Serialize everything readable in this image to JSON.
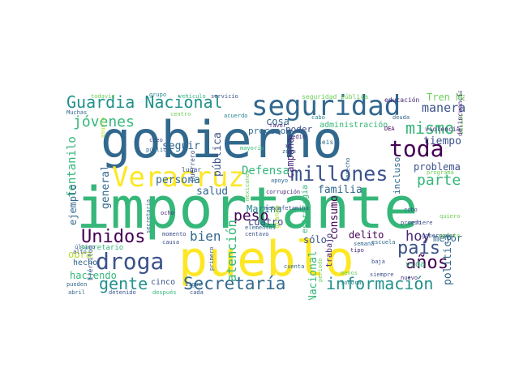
{
  "wordcloud": {
    "words": [
      {
        "text": "importante",
        "color": "#35b779",
        "rot": 0
      },
      {
        "text": "gobierno",
        "color": "#31688e",
        "rot": 0
      },
      {
        "text": "pueblo",
        "color": "#fde725",
        "rot": 0
      },
      {
        "text": "seguridad",
        "color": "#31688e",
        "rot": 0
      },
      {
        "text": "Veracruz",
        "color": "#fde725",
        "rot": 0
      },
      {
        "text": "Guardia Nacional",
        "color": "#21918c",
        "rot": 0
      },
      {
        "text": "millones",
        "color": "#3b528b",
        "rot": 0
      },
      {
        "text": "toda",
        "color": "#440154",
        "rot": 0
      },
      {
        "text": "droga",
        "color": "#3b528b",
        "rot": 0
      },
      {
        "text": "Secretaría",
        "color": "#31688e",
        "rot": 0
      },
      {
        "text": "información",
        "color": "#21918c",
        "rot": 0
      },
      {
        "text": "Unidos",
        "color": "#440154",
        "rot": 0
      },
      {
        "text": "jóvenes",
        "color": "#35b779",
        "rot": 0
      },
      {
        "text": "mismo",
        "color": "#35b779",
        "rot": 0
      },
      {
        "text": "país",
        "color": "#3b528b",
        "rot": 0
      },
      {
        "text": "años",
        "color": "#440154",
        "rot": 0
      },
      {
        "text": "gente",
        "color": "#21918c",
        "rot": 0
      },
      {
        "text": "parte",
        "color": "#35b779",
        "rot": 0
      },
      {
        "text": "hoy",
        "color": "#482878",
        "rot": 0
      },
      {
        "text": "peso",
        "color": "#440154",
        "rot": 0
      },
      {
        "text": "bien",
        "color": "#31688e",
        "rot": 0
      },
      {
        "text": "manera",
        "color": "#3b528b",
        "rot": 0
      },
      {
        "text": "tiempo",
        "color": "#3b528b",
        "rot": 0
      },
      {
        "text": "problema",
        "color": "#3b528b",
        "rot": 0
      },
      {
        "text": "Tren Maya",
        "color": "#6ece58",
        "rot": 0
      },
      {
        "text": "familia",
        "color": "#31688e",
        "rot": 0
      },
      {
        "text": "Defensa",
        "color": "#35b779",
        "rot": 0
      },
      {
        "text": "salud",
        "color": "#31688e",
        "rot": 0
      },
      {
        "text": "seguir",
        "color": "#31688e",
        "rot": 0
      },
      {
        "text": "persona",
        "color": "#31688e",
        "rot": 0
      },
      {
        "text": "Marina",
        "color": "#26828e",
        "rot": 0
      },
      {
        "text": "cuatro",
        "color": "#3e4989",
        "rot": 0
      },
      {
        "text": "delito",
        "color": "#440154",
        "rot": 0
      },
      {
        "text": "mejor",
        "color": "#31688e",
        "rot": 0
      },
      {
        "text": "sólo",
        "color": "#3b528b",
        "rot": 0
      },
      {
        "text": "haciendo",
        "color": "#35b779",
        "rot": 0
      },
      {
        "text": "obra",
        "color": "#b5de2b",
        "rot": 0
      },
      {
        "text": "hecho",
        "color": "#31688e",
        "rot": 0
      },
      {
        "text": "cosa",
        "color": "#31688e",
        "rot": 0
      },
      {
        "text": "poder",
        "color": "#3b528b",
        "rot": 0
      },
      {
        "text": "cinco",
        "color": "#3b528b",
        "rot": 0
      },
      {
        "text": "vida",
        "color": "#35b779",
        "rot": 0
      },
      {
        "text": "administración",
        "color": "#35b779",
        "rot": 0
      },
      {
        "text": "seguridad pública",
        "color": "#6ece58",
        "rot": 0
      },
      {
        "text": "educación",
        "color": "#482878",
        "rot": 0
      },
      {
        "text": "violencia",
        "color": "#482878",
        "rot": 0
      },
      {
        "text": "proceso",
        "color": "#31688e",
        "rot": 0
      },
      {
        "text": "secretario",
        "color": "#35b779",
        "rot": 0
      },
      {
        "text": "todavía",
        "color": "#6ece58",
        "rot": 0
      },
      {
        "text": "grupo",
        "color": "#26828e",
        "rot": 0
      },
      {
        "text": "vehículo",
        "color": "#35b779",
        "rot": 0
      },
      {
        "text": "servicio",
        "color": "#3b528b",
        "rot": 0
      },
      {
        "text": "Muchas",
        "color": "#31688e",
        "rot": 0
      },
      {
        "text": "cabo",
        "color": "#26828e",
        "rot": 0
      },
      {
        "text": "centro",
        "color": "#6ece58",
        "rot": 0
      },
      {
        "text": "acuerdo",
        "color": "#26828e",
        "rot": 0
      },
      {
        "text": "favor",
        "color": "#482878",
        "rot": 0
      },
      {
        "text": "DEA",
        "color": "#440154",
        "rot": 0
      },
      {
        "text": "deuda",
        "color": "#31688e",
        "rot": 0
      },
      {
        "text": "creo",
        "color": "#3b528b",
        "rot": 0
      },
      {
        "text": "público",
        "color": "#31688e",
        "rot": 0
      },
      {
        "text": "lugar",
        "color": "#3b528b",
        "rot": 0
      },
      {
        "text": "mayoría",
        "color": "#35b779",
        "rot": 0
      },
      {
        "text": "seis",
        "color": "#31688e",
        "rot": 0
      },
      {
        "text": "zona",
        "color": "#31688e",
        "rot": 0
      },
      {
        "text": "apoyo",
        "color": "#31688e",
        "rot": 0
      },
      {
        "text": "programa",
        "color": "#6ece58",
        "rot": 0
      },
      {
        "text": "ocho",
        "color": "#482878",
        "rot": 0
      },
      {
        "text": "momento",
        "color": "#3b528b",
        "rot": 0
      },
      {
        "text": "causa",
        "color": "#3b528b",
        "rot": 0
      },
      {
        "text": "centavo",
        "color": "#3b528b",
        "rot": 0
      },
      {
        "text": "elementos",
        "color": "#31688e",
        "rot": 0
      },
      {
        "text": "corrupción",
        "color": "#482878",
        "rot": 0
      },
      {
        "text": "metanfetamina",
        "color": "#3b528b",
        "rot": 0
      },
      {
        "text": "medio",
        "color": "#482878",
        "rot": 0
      },
      {
        "text": "menos",
        "color": "#6ece58",
        "rot": 0
      },
      {
        "text": "siempre",
        "color": "#3b528b",
        "rot": 0
      },
      {
        "text": "semana",
        "color": "#31688e",
        "rot": 0
      },
      {
        "text": "escuela",
        "color": "#31688e",
        "rot": 0
      },
      {
        "text": "tipo",
        "color": "#482878",
        "rot": 0
      },
      {
        "text": "robo",
        "color": "#3b528b",
        "rot": 0
      },
      {
        "text": "precio",
        "color": "#3b528b",
        "rot": 0
      },
      {
        "text": "quiero",
        "color": "#6ece58",
        "rot": 0
      },
      {
        "text": "refiere",
        "color": "#3b528b",
        "rot": 0
      },
      {
        "text": "gobernador",
        "color": "#3b528b",
        "rot": 0
      },
      {
        "text": "último",
        "color": "#3b528b",
        "rot": 0
      },
      {
        "text": "alto",
        "color": "#3b528b",
        "rot": 0
      },
      {
        "text": "pueden",
        "color": "#31688e",
        "rot": 0
      },
      {
        "text": "abril",
        "color": "#31688e",
        "rot": 0
      },
      {
        "text": "detenido",
        "color": "#3b528b",
        "rot": 0
      },
      {
        "text": "después",
        "color": "#35b779",
        "rot": 0
      },
      {
        "text": "sigue",
        "color": "#31688e",
        "rot": 0
      },
      {
        "text": "cada",
        "color": "#3b528b",
        "rot": 0
      },
      {
        "text": "cuenta",
        "color": "#31688e",
        "rot": 0
      },
      {
        "text": "Sonora",
        "color": "#26828e",
        "rot": 0
      },
      {
        "text": "nuevo",
        "color": "#482878",
        "rot": 0
      },
      {
        "text": "baja",
        "color": "#3b528b",
        "rot": 0
      },
      {
        "text": "puerto",
        "color": "#6ece58",
        "rot": 0
      },
      {
        "text": "fentanilo",
        "color": "#35b779",
        "rot": 1
      },
      {
        "text": "ejemplo",
        "color": "#31688e",
        "rot": 1
      },
      {
        "text": "general",
        "color": "#31688e",
        "rot": 1
      },
      {
        "text": "pública",
        "color": "#3b528b",
        "rot": 1
      },
      {
        "text": "campaña",
        "color": "#482878",
        "rot": 1
      },
      {
        "text": "atención",
        "color": "#35b779",
        "rot": 1
      },
      {
        "text": "consumo",
        "color": "#440154",
        "rot": 1
      },
      {
        "text": "trabajo",
        "color": "#482878",
        "rot": 1
      },
      {
        "text": "incluso",
        "color": "#31688e",
        "rot": 1
      },
      {
        "text": "política",
        "color": "#31688e",
        "rot": 1
      },
      {
        "text": "Nacional",
        "color": "#35b779",
        "rot": 1
      },
      {
        "text": "estrategia",
        "color": "#35b779",
        "rot": 1
      },
      {
        "text": "Guerrero",
        "color": "#3b528b",
        "rot": 1
      },
      {
        "text": "mexicanos",
        "color": "#6ece58",
        "rot": 1
      },
      {
        "text": "Ejército",
        "color": "#3b528b",
        "rot": 1
      },
      {
        "text": "asunto",
        "color": "#b5de2b",
        "rot": 1
      },
      {
        "text": "secretaria",
        "color": "#31688e",
        "rot": 1
      },
      {
        "text": "primero",
        "color": "#3b528b",
        "rot": 1
      },
      {
        "text": "derecho",
        "color": "#31688e",
        "rot": 1
      },
      {
        "text": "social",
        "color": "#6ece58",
        "rot": 1
      },
      {
        "text": "delincuencia",
        "color": "#482878",
        "rot": 1
      },
      {
        "text": "periodo",
        "color": "#6ece58",
        "rot": 1
      },
      {
        "text": "grande",
        "color": "#b5de2b",
        "rot": 1
      }
    ]
  }
}
